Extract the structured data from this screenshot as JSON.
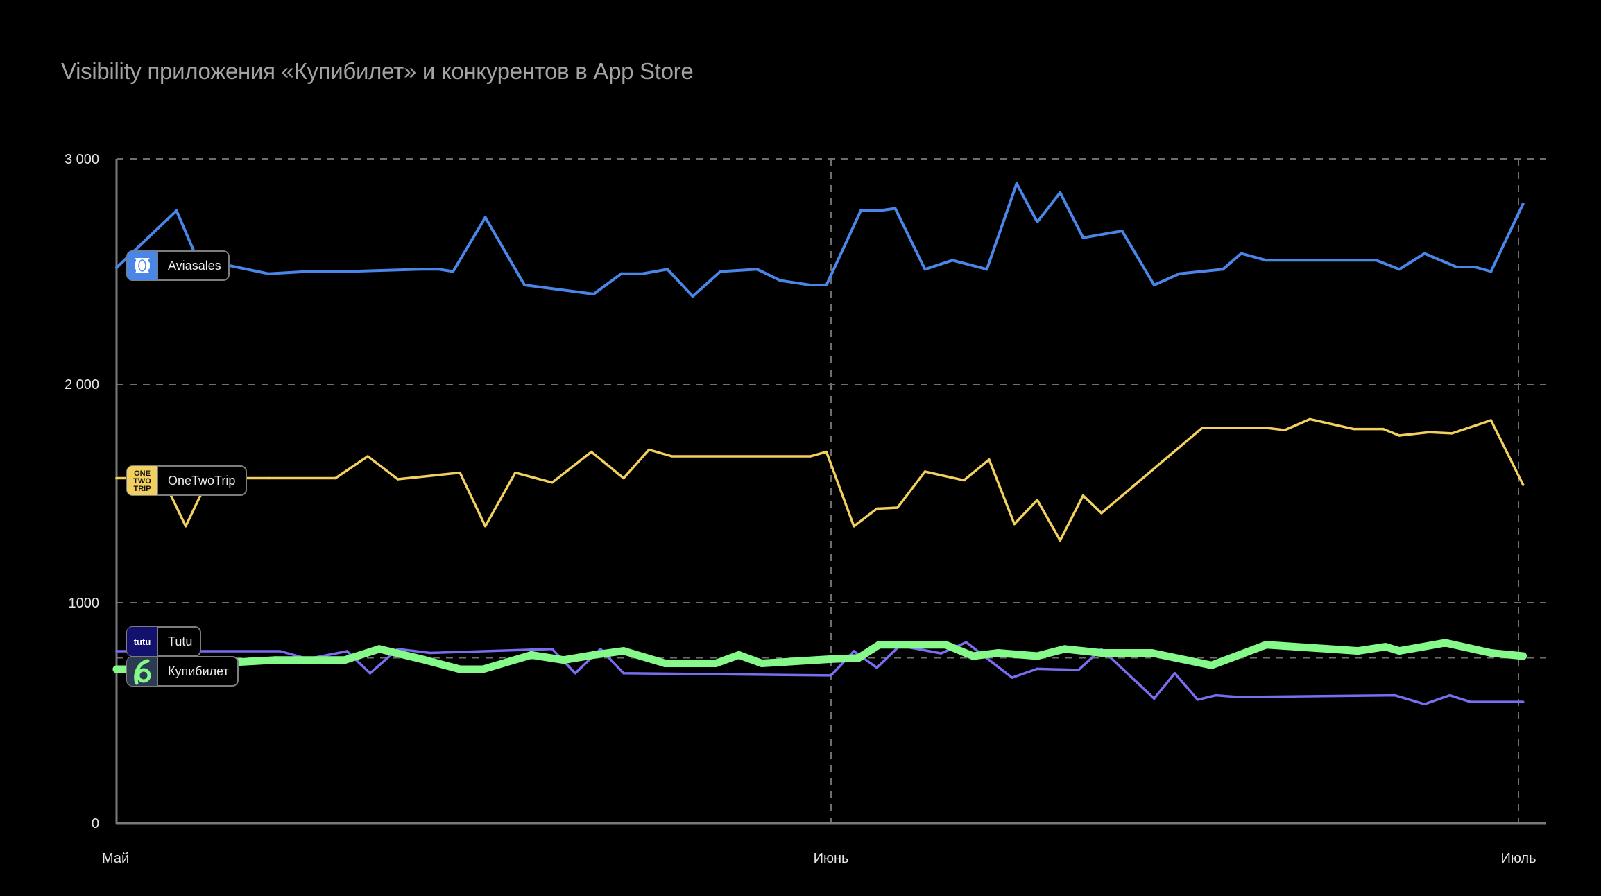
{
  "chart_data": {
    "type": "line",
    "title": "Visibility приложения «Купибилет» и конкурентов в App Store",
    "xlabel": "",
    "ylabel": "",
    "x_unit": "days since 1 May",
    "xlim": [
      0,
      61
    ],
    "ylim": [
      0,
      3000
    ],
    "grid": true,
    "legend": "inline-left",
    "y_ticks": [
      {
        "value": 0,
        "label": "0"
      },
      {
        "value": 1000,
        "label": "1000"
      },
      {
        "value": 2000,
        "label": "2 000"
      },
      {
        "value": 3000,
        "label": "3 000"
      }
    ],
    "reference_lines": [
      750
    ],
    "x_ticks": [
      {
        "value": 0,
        "label": "Май"
      },
      {
        "value": 31,
        "label": "Июнь"
      },
      {
        "value": 61,
        "label": "Июль"
      }
    ],
    "series": [
      {
        "name": "Aviasales",
        "color": "#4a86e8",
        "icon": "aviasales-ticket-icon",
        "icon_bg": "#4a86e8",
        "x": [
          0,
          2.6,
          3.5,
          6.6,
          8.3,
          10,
          13.2,
          14,
          14.6,
          16,
          17.7,
          19.2,
          20.7,
          21.9,
          22.8,
          23.9,
          25,
          26.2,
          27.8,
          28.8,
          30.1,
          30.8,
          32.3,
          33.1,
          33.8,
          35.1,
          36.3,
          37.8,
          39.1,
          40,
          41,
          42,
          43.7,
          45.1,
          46.2,
          48.1,
          48.9,
          50,
          54.8,
          55.8,
          56.9,
          58.3,
          59.1,
          59.8,
          61.2
        ],
        "values": [
          2517,
          2770,
          2556,
          2490,
          2500,
          2500,
          2510,
          2510,
          2500,
          2740,
          2440,
          2420,
          2400,
          2490,
          2490,
          2510,
          2390,
          2500,
          2510,
          2460,
          2440,
          2440,
          2770,
          2770,
          2780,
          2510,
          2550,
          2510,
          2890,
          2720,
          2850,
          2650,
          2680,
          2440,
          2490,
          2510,
          2580,
          2550,
          2550,
          2510,
          2580,
          2520,
          2520,
          2500,
          2800
        ]
      },
      {
        "name": "OneTwoTrip",
        "color": "#f2d060",
        "icon": "onetwotrip-logo-icon",
        "icon_bg": "#f2d060",
        "icon_text": [
          "ONE",
          "TWO",
          "TRIP"
        ],
        "x": [
          0,
          2,
          3,
          4,
          6.6,
          9.5,
          10.9,
          12.2,
          14.9,
          16,
          17.3,
          18.9,
          20.6,
          22,
          23.1,
          24.1,
          30.1,
          30.8,
          32,
          33,
          33.9,
          35.1,
          36.8,
          37.9,
          39,
          40,
          41,
          42,
          42.8,
          47.2,
          50,
          50.8,
          51.9,
          53.8,
          55.1,
          55.8,
          57.1,
          58.1,
          59.8,
          61.2
        ],
        "values": [
          1570,
          1570,
          1350,
          1570,
          1570,
          1570,
          1670,
          1565,
          1595,
          1350,
          1595,
          1550,
          1690,
          1570,
          1700,
          1670,
          1670,
          1690,
          1350,
          1430,
          1435,
          1600,
          1560,
          1655,
          1360,
          1470,
          1285,
          1490,
          1410,
          1800,
          1800,
          1790,
          1840,
          1795,
          1795,
          1765,
          1780,
          1775,
          1835,
          1540
        ]
      },
      {
        "name": "Tutu",
        "color": "#7a6ef0",
        "icon": "tutu-logo-icon",
        "icon_bg": "#12126e",
        "icon_text": [
          "tutu"
        ],
        "x": [
          0,
          7.1,
          8.3,
          10,
          11,
          12.2,
          13.6,
          18.9,
          19.9,
          21,
          22,
          31,
          32,
          33,
          34,
          35.8,
          36.9,
          38.9,
          40,
          41.8,
          42.8,
          45.1,
          46,
          47,
          47.8,
          48.8,
          55.6,
          56.9,
          58,
          58.9,
          61.2
        ],
        "values": [
          780,
          780,
          745,
          780,
          680,
          790,
          772,
          790,
          680,
          790,
          680,
          670,
          780,
          705,
          805,
          770,
          820,
          660,
          700,
          695,
          790,
          565,
          680,
          560,
          580,
          572,
          580,
          540,
          580,
          550,
          550
        ]
      },
      {
        "name": "Купибилет",
        "color": "#86f98b",
        "icon": "kupibilet-logo-icon",
        "icon_bg": "#2c3a52",
        "x": [
          0,
          1.2,
          2.1,
          6.9,
          9.9,
          11.4,
          13.2,
          14.9,
          15.9,
          18,
          19.4,
          20.7,
          22,
          23.8,
          26,
          27,
          28,
          31,
          32.2,
          33.1,
          36,
          37.2,
          38.3,
          40,
          41.2,
          42.8,
          45,
          47.6,
          50,
          54,
          55.2,
          55.8,
          57.8,
          59.8,
          61.2
        ],
        "values": [
          698,
          698,
          712,
          740,
          740,
          790,
          745,
          698,
          698,
          763,
          740,
          763,
          781,
          725,
          725,
          763,
          725,
          744,
          749,
          809,
          809,
          758,
          772,
          758,
          790,
          772,
          772,
          716,
          809,
          781,
          800,
          781,
          818,
          772,
          758
        ]
      }
    ]
  }
}
